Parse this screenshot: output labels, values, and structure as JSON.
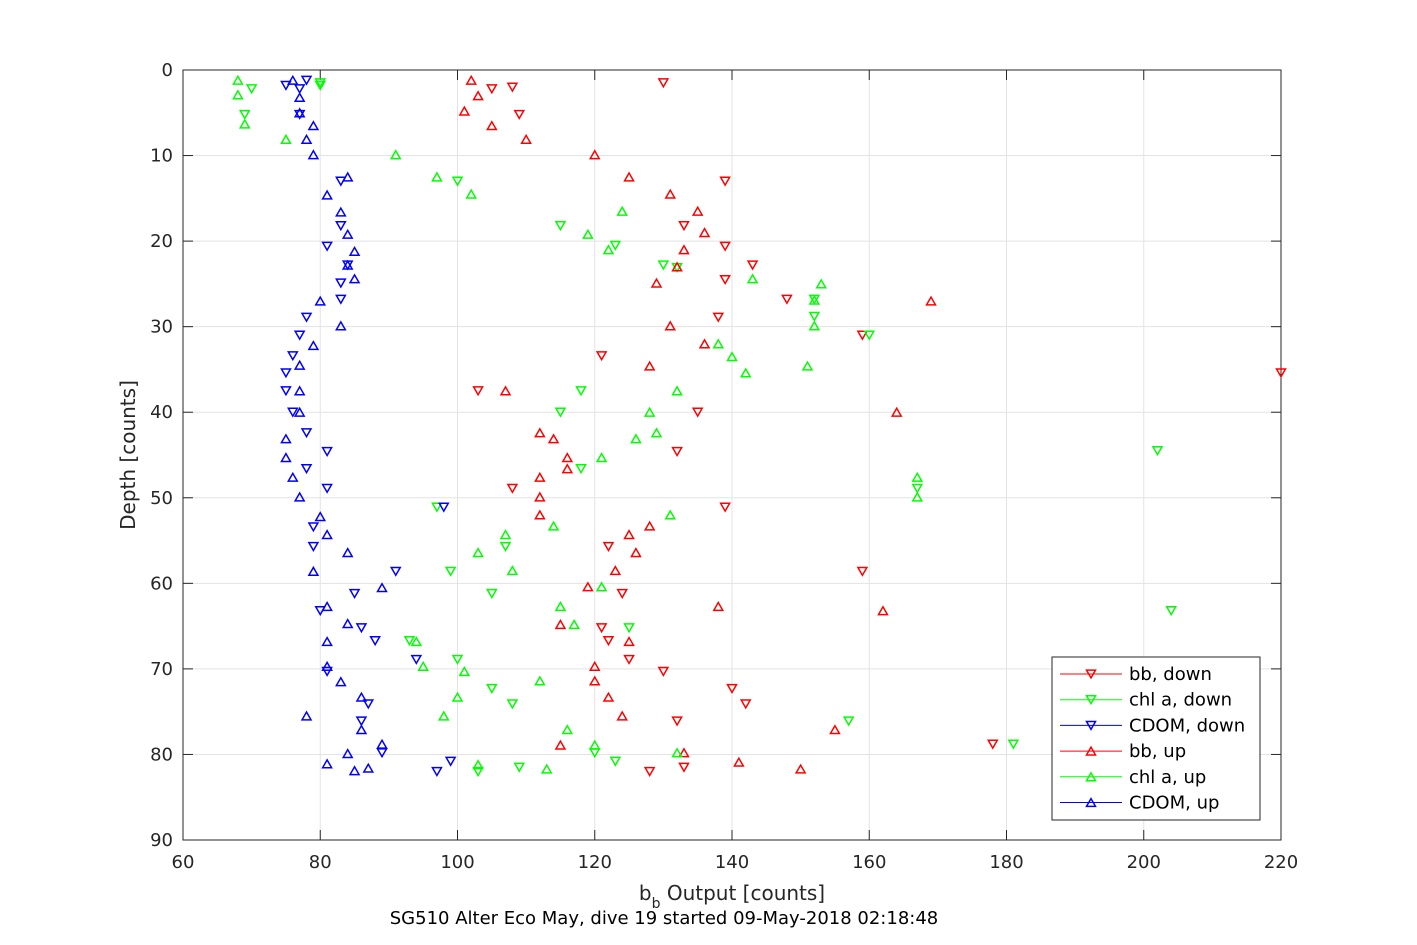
{
  "chart_data": {
    "type": "scatter",
    "title": "SG510 Alter Eco May, dive 19 started 09-May-2018 02:18:48",
    "xlabel": {
      "main": "b",
      "sub": "b",
      "rest": " Output [counts]"
    },
    "ylabel": "Depth [counts]",
    "xlim": [
      60,
      220
    ],
    "ylim": [
      0,
      90
    ],
    "y_reversed": true,
    "grid": true,
    "legend_position": "bottom-right",
    "x_ticks": [
      "60",
      "80",
      "100",
      "120",
      "140",
      "160",
      "180",
      "200",
      "220"
    ],
    "y_ticks": [
      "0",
      "10",
      "20",
      "30",
      "40",
      "50",
      "60",
      "70",
      "80",
      "90"
    ],
    "series": [
      {
        "name": "bb, down",
        "color": "#ff0000",
        "marker": "triangle-down",
        "points": [
          [
            130,
            1.5
          ],
          [
            105,
            2.2
          ],
          [
            108,
            2
          ],
          [
            109,
            5.2
          ],
          [
            139,
            13
          ],
          [
            133,
            18.2
          ],
          [
            139,
            20.6
          ],
          [
            143,
            22.8
          ],
          [
            139,
            24.5
          ],
          [
            148,
            26.8
          ],
          [
            138,
            28.9
          ],
          [
            159,
            31
          ],
          [
            121,
            33.4
          ],
          [
            220,
            35.4
          ],
          [
            103,
            37.5
          ],
          [
            135,
            40
          ],
          [
            132,
            44.6
          ],
          [
            108,
            48.9
          ],
          [
            139,
            51.1
          ],
          [
            122,
            55.7
          ],
          [
            159,
            58.6
          ],
          [
            124,
            61.2
          ],
          [
            121,
            65.2
          ],
          [
            122,
            66.7
          ],
          [
            125,
            68.9
          ],
          [
            130,
            70.3
          ],
          [
            140,
            72.3
          ],
          [
            142,
            74.1
          ],
          [
            132,
            76.1
          ],
          [
            178,
            78.8
          ],
          [
            133,
            81.5
          ],
          [
            128,
            82
          ]
        ]
      },
      {
        "name": "chl a, down",
        "color": "#00ff00",
        "marker": "triangle-down",
        "points": [
          [
            80,
            1.5
          ],
          [
            70,
            2.2
          ],
          [
            69,
            5.2
          ],
          [
            80,
            1.8
          ],
          [
            100,
            13
          ],
          [
            115,
            18.2
          ],
          [
            123,
            20.5
          ],
          [
            130,
            22.8
          ],
          [
            132,
            23.1
          ],
          [
            152,
            26.8
          ],
          [
            152,
            28.8
          ],
          [
            160,
            31
          ],
          [
            118,
            37.5
          ],
          [
            115,
            40
          ],
          [
            202,
            44.5
          ],
          [
            118,
            46.6
          ],
          [
            167,
            48.9
          ],
          [
            97,
            51.1
          ],
          [
            107,
            55.7
          ],
          [
            99,
            58.6
          ],
          [
            105,
            61.2
          ],
          [
            125,
            65.2
          ],
          [
            93,
            66.7
          ],
          [
            100,
            68.9
          ],
          [
            105,
            72.3
          ],
          [
            108,
            74.1
          ],
          [
            157,
            76.1
          ],
          [
            181,
            78.8
          ],
          [
            120,
            79.8
          ],
          [
            123,
            80.8
          ],
          [
            103,
            82
          ],
          [
            109,
            81.5
          ],
          [
            204,
            63.2
          ]
        ]
      },
      {
        "name": "CDOM, down",
        "color": "#0000ff",
        "marker": "triangle-down",
        "points": [
          [
            78,
            1.2
          ],
          [
            75,
            1.8
          ],
          [
            77,
            2.2
          ],
          [
            77,
            5.2
          ],
          [
            83,
            13
          ],
          [
            83,
            18.2
          ],
          [
            81,
            20.6
          ],
          [
            84,
            22.8
          ],
          [
            83,
            24.9
          ],
          [
            83,
            26.8
          ],
          [
            78,
            28.9
          ],
          [
            77,
            31
          ],
          [
            76,
            33.4
          ],
          [
            75,
            35.4
          ],
          [
            75,
            37.5
          ],
          [
            76,
            40
          ],
          [
            78,
            42.4
          ],
          [
            81,
            44.6
          ],
          [
            78,
            46.6
          ],
          [
            81,
            48.9
          ],
          [
            98,
            51.1
          ],
          [
            79,
            53.4
          ],
          [
            79,
            55.7
          ],
          [
            91,
            58.6
          ],
          [
            85,
            61.2
          ],
          [
            80,
            63.2
          ],
          [
            86,
            65.2
          ],
          [
            88,
            66.7
          ],
          [
            94,
            68.9
          ],
          [
            81,
            70.3
          ],
          [
            87,
            74.1
          ],
          [
            86,
            76.1
          ],
          [
            89,
            79.8
          ],
          [
            99,
            80.8
          ],
          [
            97,
            82
          ]
        ]
      },
      {
        "name": "bb, up",
        "color": "#ff0000",
        "marker": "triangle-up",
        "points": [
          [
            102,
            1.2
          ],
          [
            103,
            3
          ],
          [
            101,
            4.8
          ],
          [
            105,
            6.5
          ],
          [
            110,
            8.1
          ],
          [
            120,
            9.9
          ],
          [
            125,
            12.5
          ],
          [
            131,
            14.5
          ],
          [
            135,
            16.5
          ],
          [
            136,
            19
          ],
          [
            133,
            21
          ],
          [
            132,
            23
          ],
          [
            129,
            24.9
          ],
          [
            169,
            27
          ],
          [
            131,
            29.9
          ],
          [
            136,
            32
          ],
          [
            128,
            34.6
          ],
          [
            107,
            37.5
          ],
          [
            164,
            40
          ],
          [
            112,
            42.4
          ],
          [
            114,
            43.1
          ],
          [
            116,
            45.3
          ],
          [
            116,
            46.6
          ],
          [
            112,
            47.6
          ],
          [
            112,
            49.9
          ],
          [
            112,
            52
          ],
          [
            128,
            53.3
          ],
          [
            125,
            54.3
          ],
          [
            126,
            56.4
          ],
          [
            123,
            58.5
          ],
          [
            119,
            60.4
          ],
          [
            138,
            62.7
          ],
          [
            162,
            63.2
          ],
          [
            115,
            64.8
          ],
          [
            125,
            66.8
          ],
          [
            120,
            69.7
          ],
          [
            120,
            71.4
          ],
          [
            122,
            73.3
          ],
          [
            124,
            75.5
          ],
          [
            155,
            77.1
          ],
          [
            115,
            78.9
          ],
          [
            133,
            79.8
          ],
          [
            141,
            80.9
          ],
          [
            150,
            81.7
          ]
        ]
      },
      {
        "name": "chl a, up",
        "color": "#00ff00",
        "marker": "triangle-up",
        "points": [
          [
            68,
            1.2
          ],
          [
            68,
            2.9
          ],
          [
            69,
            6.3
          ],
          [
            75,
            8.1
          ],
          [
            91,
            9.9
          ],
          [
            97,
            12.5
          ],
          [
            102,
            14.5
          ],
          [
            124,
            16.5
          ],
          [
            119,
            19.2
          ],
          [
            122,
            21
          ],
          [
            143,
            24.4
          ],
          [
            153,
            25
          ],
          [
            152,
            26.9
          ],
          [
            152,
            29.9
          ],
          [
            138,
            32
          ],
          [
            140,
            33.5
          ],
          [
            142,
            35.4
          ],
          [
            151,
            34.6
          ],
          [
            132,
            37.5
          ],
          [
            128,
            40
          ],
          [
            129,
            42.4
          ],
          [
            126,
            43.1
          ],
          [
            121,
            45.3
          ],
          [
            167,
            47.6
          ],
          [
            167,
            49.9
          ],
          [
            131,
            52
          ],
          [
            114,
            53.3
          ],
          [
            107,
            54.3
          ],
          [
            103,
            56.4
          ],
          [
            108,
            58.5
          ],
          [
            121,
            60.4
          ],
          [
            115,
            62.7
          ],
          [
            117,
            64.8
          ],
          [
            94,
            66.8
          ],
          [
            95,
            69.7
          ],
          [
            101,
            70.3
          ],
          [
            112,
            71.4
          ],
          [
            100,
            73.3
          ],
          [
            98,
            75.5
          ],
          [
            116,
            77.1
          ],
          [
            120,
            78.9
          ],
          [
            132,
            79.8
          ],
          [
            103,
            81.2
          ],
          [
            113,
            81.7
          ]
        ]
      },
      {
        "name": "CDOM, up",
        "color": "#0000ff",
        "marker": "triangle-up",
        "points": [
          [
            76,
            1.2
          ],
          [
            77,
            3.2
          ],
          [
            77,
            5
          ],
          [
            79,
            6.5
          ],
          [
            78,
            8.1
          ],
          [
            79,
            9.9
          ],
          [
            84,
            12.5
          ],
          [
            81,
            14.6
          ],
          [
            83,
            16.6
          ],
          [
            84,
            19.2
          ],
          [
            85,
            21.2
          ],
          [
            84,
            22.8
          ],
          [
            85,
            24.4
          ],
          [
            80,
            27
          ],
          [
            83,
            29.9
          ],
          [
            79,
            32.2
          ],
          [
            77,
            34.5
          ],
          [
            77,
            37.5
          ],
          [
            77,
            40
          ],
          [
            75,
            43.1
          ],
          [
            75,
            45.3
          ],
          [
            76,
            47.6
          ],
          [
            77,
            49.9
          ],
          [
            80,
            52.2
          ],
          [
            81,
            54.3
          ],
          [
            84,
            56.4
          ],
          [
            79,
            58.6
          ],
          [
            89,
            60.5
          ],
          [
            81,
            62.7
          ],
          [
            84,
            64.7
          ],
          [
            81,
            66.8
          ],
          [
            81,
            69.7
          ],
          [
            83,
            71.5
          ],
          [
            86,
            73.3
          ],
          [
            78,
            75.5
          ],
          [
            86,
            77.1
          ],
          [
            89,
            78.8
          ],
          [
            84,
            79.9
          ],
          [
            81,
            81.1
          ],
          [
            85,
            81.9
          ],
          [
            87,
            81.6
          ]
        ]
      }
    ]
  }
}
